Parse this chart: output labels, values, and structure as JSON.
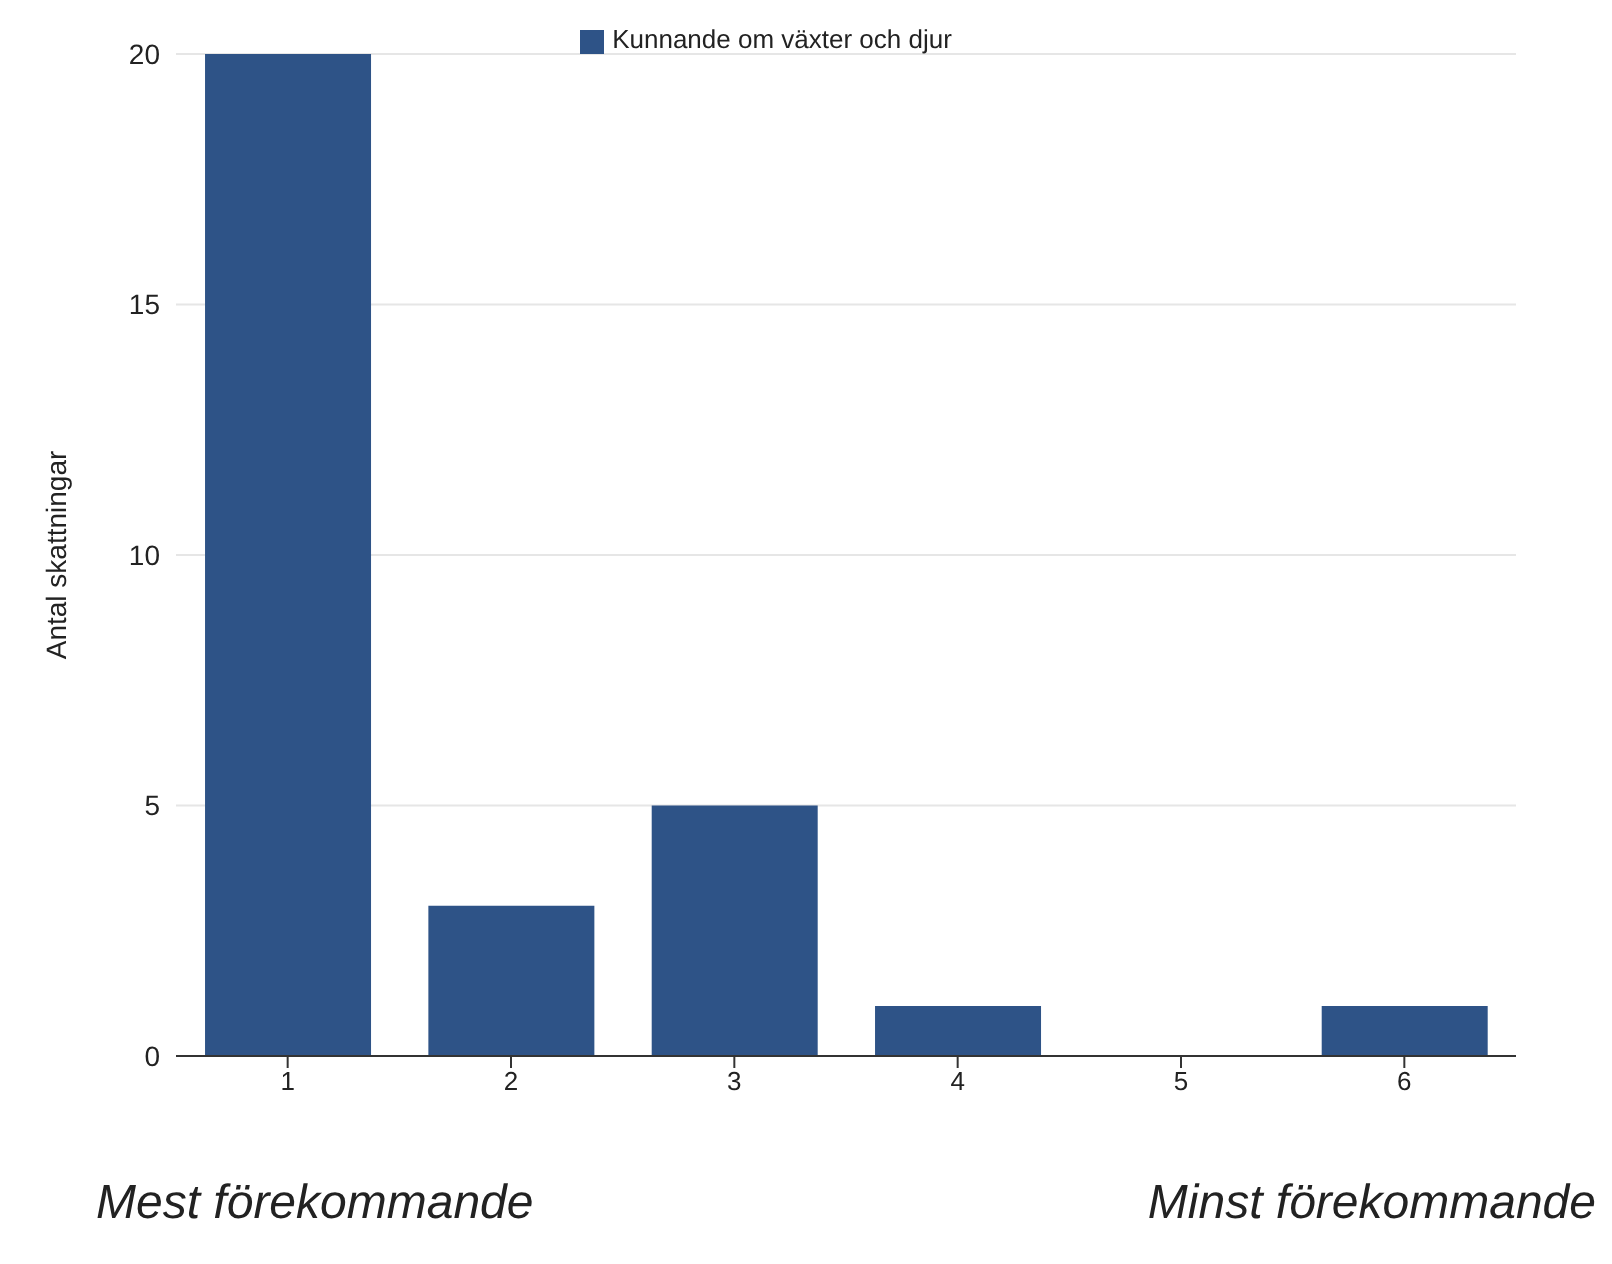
{
  "chart_data": {
    "type": "bar",
    "categories": [
      "1",
      "2",
      "3",
      "4",
      "5",
      "6"
    ],
    "series": [
      {
        "name": "Kunnande om växter och djur",
        "color": "#2e5387",
        "values": [
          20,
          3,
          5,
          1,
          0,
          1
        ]
      }
    ],
    "ylabel": "Antal skattningar",
    "ylim": [
      0,
      20
    ],
    "yticks": [
      0,
      5,
      10,
      15,
      20
    ],
    "grid": "y",
    "legend": "top",
    "annotations": [
      "Mest förekommande",
      "Minst förekommande"
    ]
  }
}
